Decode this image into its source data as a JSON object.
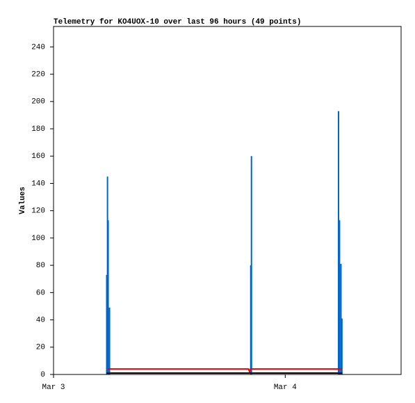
{
  "chart_data": {
    "type": "line",
    "title": "Telemetry for KO4UOX-10 over last 96 hours (49 points)",
    "y_label": "Values",
    "xlim": [
      0,
      36
    ],
    "xticks": [
      {
        "value": 0,
        "label": "Mar 3"
      },
      {
        "value": 24,
        "label": "Mar 4"
      }
    ],
    "ylim": [
      0,
      255
    ],
    "yticks": [
      0,
      20,
      40,
      60,
      80,
      100,
      120,
      140,
      160,
      180,
      200,
      220,
      240
    ],
    "series": [
      {
        "style": "impulse",
        "color": "#0066cc",
        "x": [
          5.51,
          5.59,
          5.66,
          5.8,
          20.43,
          20.5,
          29.52,
          29.62,
          29.77,
          29.87
        ],
        "values": [
          73,
          145,
          113,
          49,
          80,
          160,
          193,
          113,
          81,
          41
        ]
      },
      {
        "style": "line",
        "color": "#ee0000",
        "x": [
          5.6,
          20.2,
          20.3,
          20.4,
          29.9
        ],
        "values": [
          4,
          4,
          2,
          4,
          4
        ]
      },
      {
        "style": "line",
        "color": "#000000",
        "x": [
          5.5,
          29.9
        ],
        "values": [
          1,
          1
        ]
      }
    ]
  }
}
